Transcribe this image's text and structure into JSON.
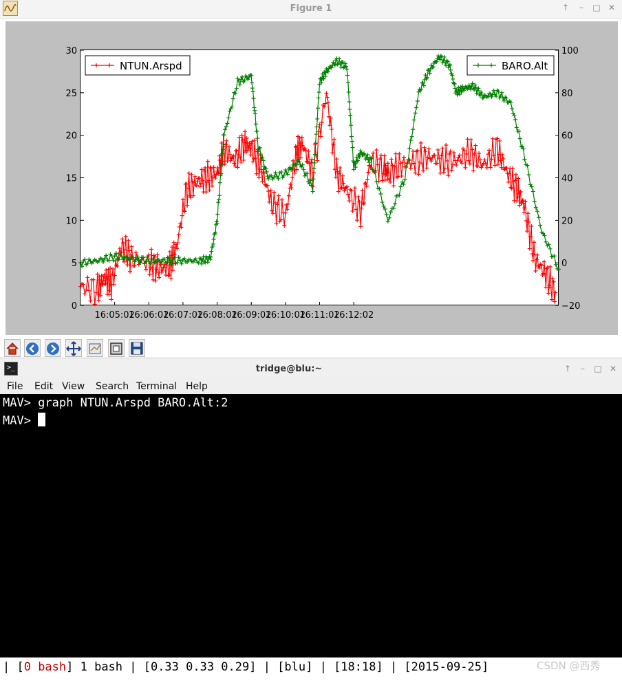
{
  "figure_window": {
    "title": "Figure 1",
    "controls": [
      "↑",
      "–",
      "□",
      "✕"
    ]
  },
  "chart_data": {
    "type": "line",
    "x_label": "",
    "x_ticks": [
      "16:05:02",
      "16:06:02",
      "16:07:02",
      "16:08:02",
      "16:09:02",
      "16:10:02",
      "16:11:02",
      "16:12:02"
    ],
    "left_axis": {
      "ylim": [
        0,
        30
      ],
      "ticks": [
        0,
        5,
        10,
        15,
        20,
        25,
        30
      ]
    },
    "right_axis": {
      "ylim": [
        -20,
        100
      ],
      "ticks": [
        -20,
        0,
        20,
        40,
        60,
        80,
        100
      ]
    },
    "series": [
      {
        "name": "NTUN.Arspd",
        "axis": "left",
        "color": "#ff0000",
        "marker": "+",
        "x_minutes": [
          0,
          0.5,
          0.7,
          0.9,
          1.2,
          1.5,
          2.0,
          2.3,
          2.6,
          2.8,
          3.1,
          3.4,
          3.7,
          4.0,
          4.2,
          4.5,
          4.8,
          5.0,
          5.3,
          5.6,
          6.0,
          6.3,
          6.5,
          6.8,
          7.2,
          7.5,
          7.8,
          8.2,
          8.5,
          8.9,
          9.0,
          9.4,
          9.8,
          10.2,
          10.6,
          11.0,
          11.4,
          11.8,
          12.2,
          12.5,
          12.8,
          13.0,
          13.3,
          13.6,
          13.9
        ],
        "y": [
          2.2,
          1.8,
          3.2,
          2.4,
          7.0,
          5.5,
          5.0,
          4.3,
          4.5,
          6.5,
          13.5,
          14.5,
          15.0,
          15.5,
          18.5,
          17.0,
          19.0,
          18.5,
          16.0,
          12.0,
          10.5,
          17.5,
          19.0,
          15.5,
          25.0,
          15.5,
          13.5,
          11.0,
          17.0,
          16.0,
          15.5,
          16.5,
          17.0,
          17.5,
          17.0,
          17.0,
          18.0,
          16.5,
          18.5,
          15.5,
          13.5,
          11.5,
          5.5,
          3.8,
          1.5
        ]
      },
      {
        "name": "BARO.Alt",
        "axis": "right",
        "color": "#008000",
        "marker": "+",
        "x_minutes": [
          0,
          0.5,
          1.0,
          1.5,
          2.0,
          2.5,
          3.0,
          3.5,
          3.8,
          4.0,
          4.2,
          4.6,
          5.0,
          5.2,
          5.5,
          6.0,
          6.4,
          6.8,
          7.0,
          7.2,
          7.5,
          7.8,
          8.0,
          8.2,
          8.5,
          9.0,
          9.5,
          9.9,
          10.2,
          10.5,
          10.8,
          11.0,
          11.2,
          11.5,
          11.8,
          12.2,
          12.6,
          13.0,
          13.5,
          14.0
        ],
        "y": [
          0,
          1,
          3,
          2,
          1,
          1,
          1,
          1,
          2,
          20,
          60,
          85,
          88,
          55,
          40,
          42,
          48,
          35,
          85,
          90,
          95,
          92,
          45,
          52,
          48,
          20,
          40,
          80,
          90,
          97,
          93,
          80,
          82,
          83,
          78,
          80,
          75,
          50,
          15,
          -3
        ]
      }
    ],
    "grid": false,
    "legends": [
      {
        "series": "NTUN.Arspd",
        "position": "top-left"
      },
      {
        "series": "BARO.Alt",
        "position": "top-right"
      }
    ]
  },
  "toolbar": {
    "tools": [
      "home-icon",
      "back-icon",
      "forward-icon",
      "pan-icon",
      "subplots-icon",
      "configure-icon",
      "save-icon"
    ]
  },
  "terminal_window": {
    "title": "tridge@blu:~",
    "menu": [
      "File",
      "Edit",
      "View",
      "Search",
      "Terminal",
      "Help"
    ],
    "lines": [
      "MAV> graph NTUN.Arspd BARO.Alt:2",
      "MAV> "
    ],
    "status": {
      "prefix": "| [",
      "active_window": "0 bash",
      "middle": "] 1 bash | [0.33 0.33 0.29] | [blu] | [18:18] | [2015-09-25]"
    }
  },
  "watermark": "CSDN @西秀"
}
